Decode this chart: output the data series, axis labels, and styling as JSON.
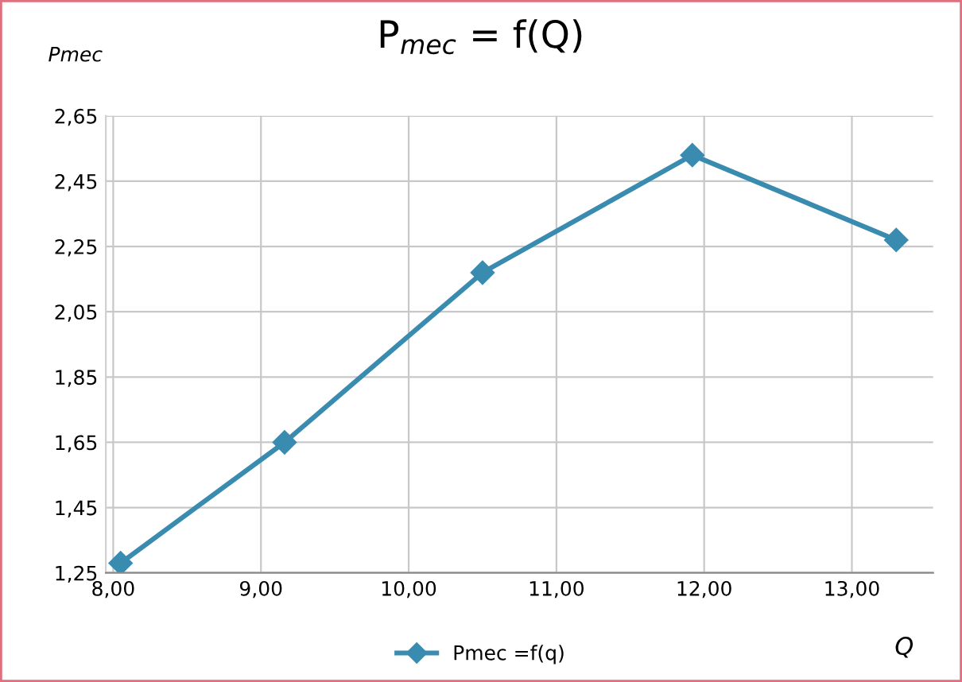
{
  "chart_data": {
    "type": "line",
    "title": "P$_{mec}$ = f(Q)",
    "xlabel": "Q",
    "ylabel": "Pmec",
    "x": [
      8.05,
      9.16,
      10.5,
      11.92,
      13.3
    ],
    "series": [
      {
        "name": "Pmec =f(q)",
        "color": "#3a8bb0",
        "values": [
          1.28,
          1.65,
          2.17,
          2.53,
          2.27
        ]
      }
    ],
    "xlim": [
      7.95,
      13.55
    ],
    "ylim": [
      1.25,
      2.65
    ],
    "xticks": [
      {
        "value": 8,
        "label": "8,00"
      },
      {
        "value": 9,
        "label": "9,00"
      },
      {
        "value": 10,
        "label": "10,00"
      },
      {
        "value": 11,
        "label": "11,00"
      },
      {
        "value": 12,
        "label": "12,00"
      },
      {
        "value": 13,
        "label": "13,00"
      }
    ],
    "yticks": [
      {
        "value": 1.25,
        "label": "1,25"
      },
      {
        "value": 1.45,
        "label": "1,45"
      },
      {
        "value": 1.65,
        "label": "1,65"
      },
      {
        "value": 1.85,
        "label": "1,85"
      },
      {
        "value": 2.05,
        "label": "2,05"
      },
      {
        "value": 2.25,
        "label": "2,25"
      },
      {
        "value": 2.45,
        "label": "2,45"
      },
      {
        "value": 2.65,
        "label": "2,65"
      }
    ],
    "grid": true,
    "legend": "bottom",
    "marker": "diamond",
    "line_style": "solid"
  }
}
